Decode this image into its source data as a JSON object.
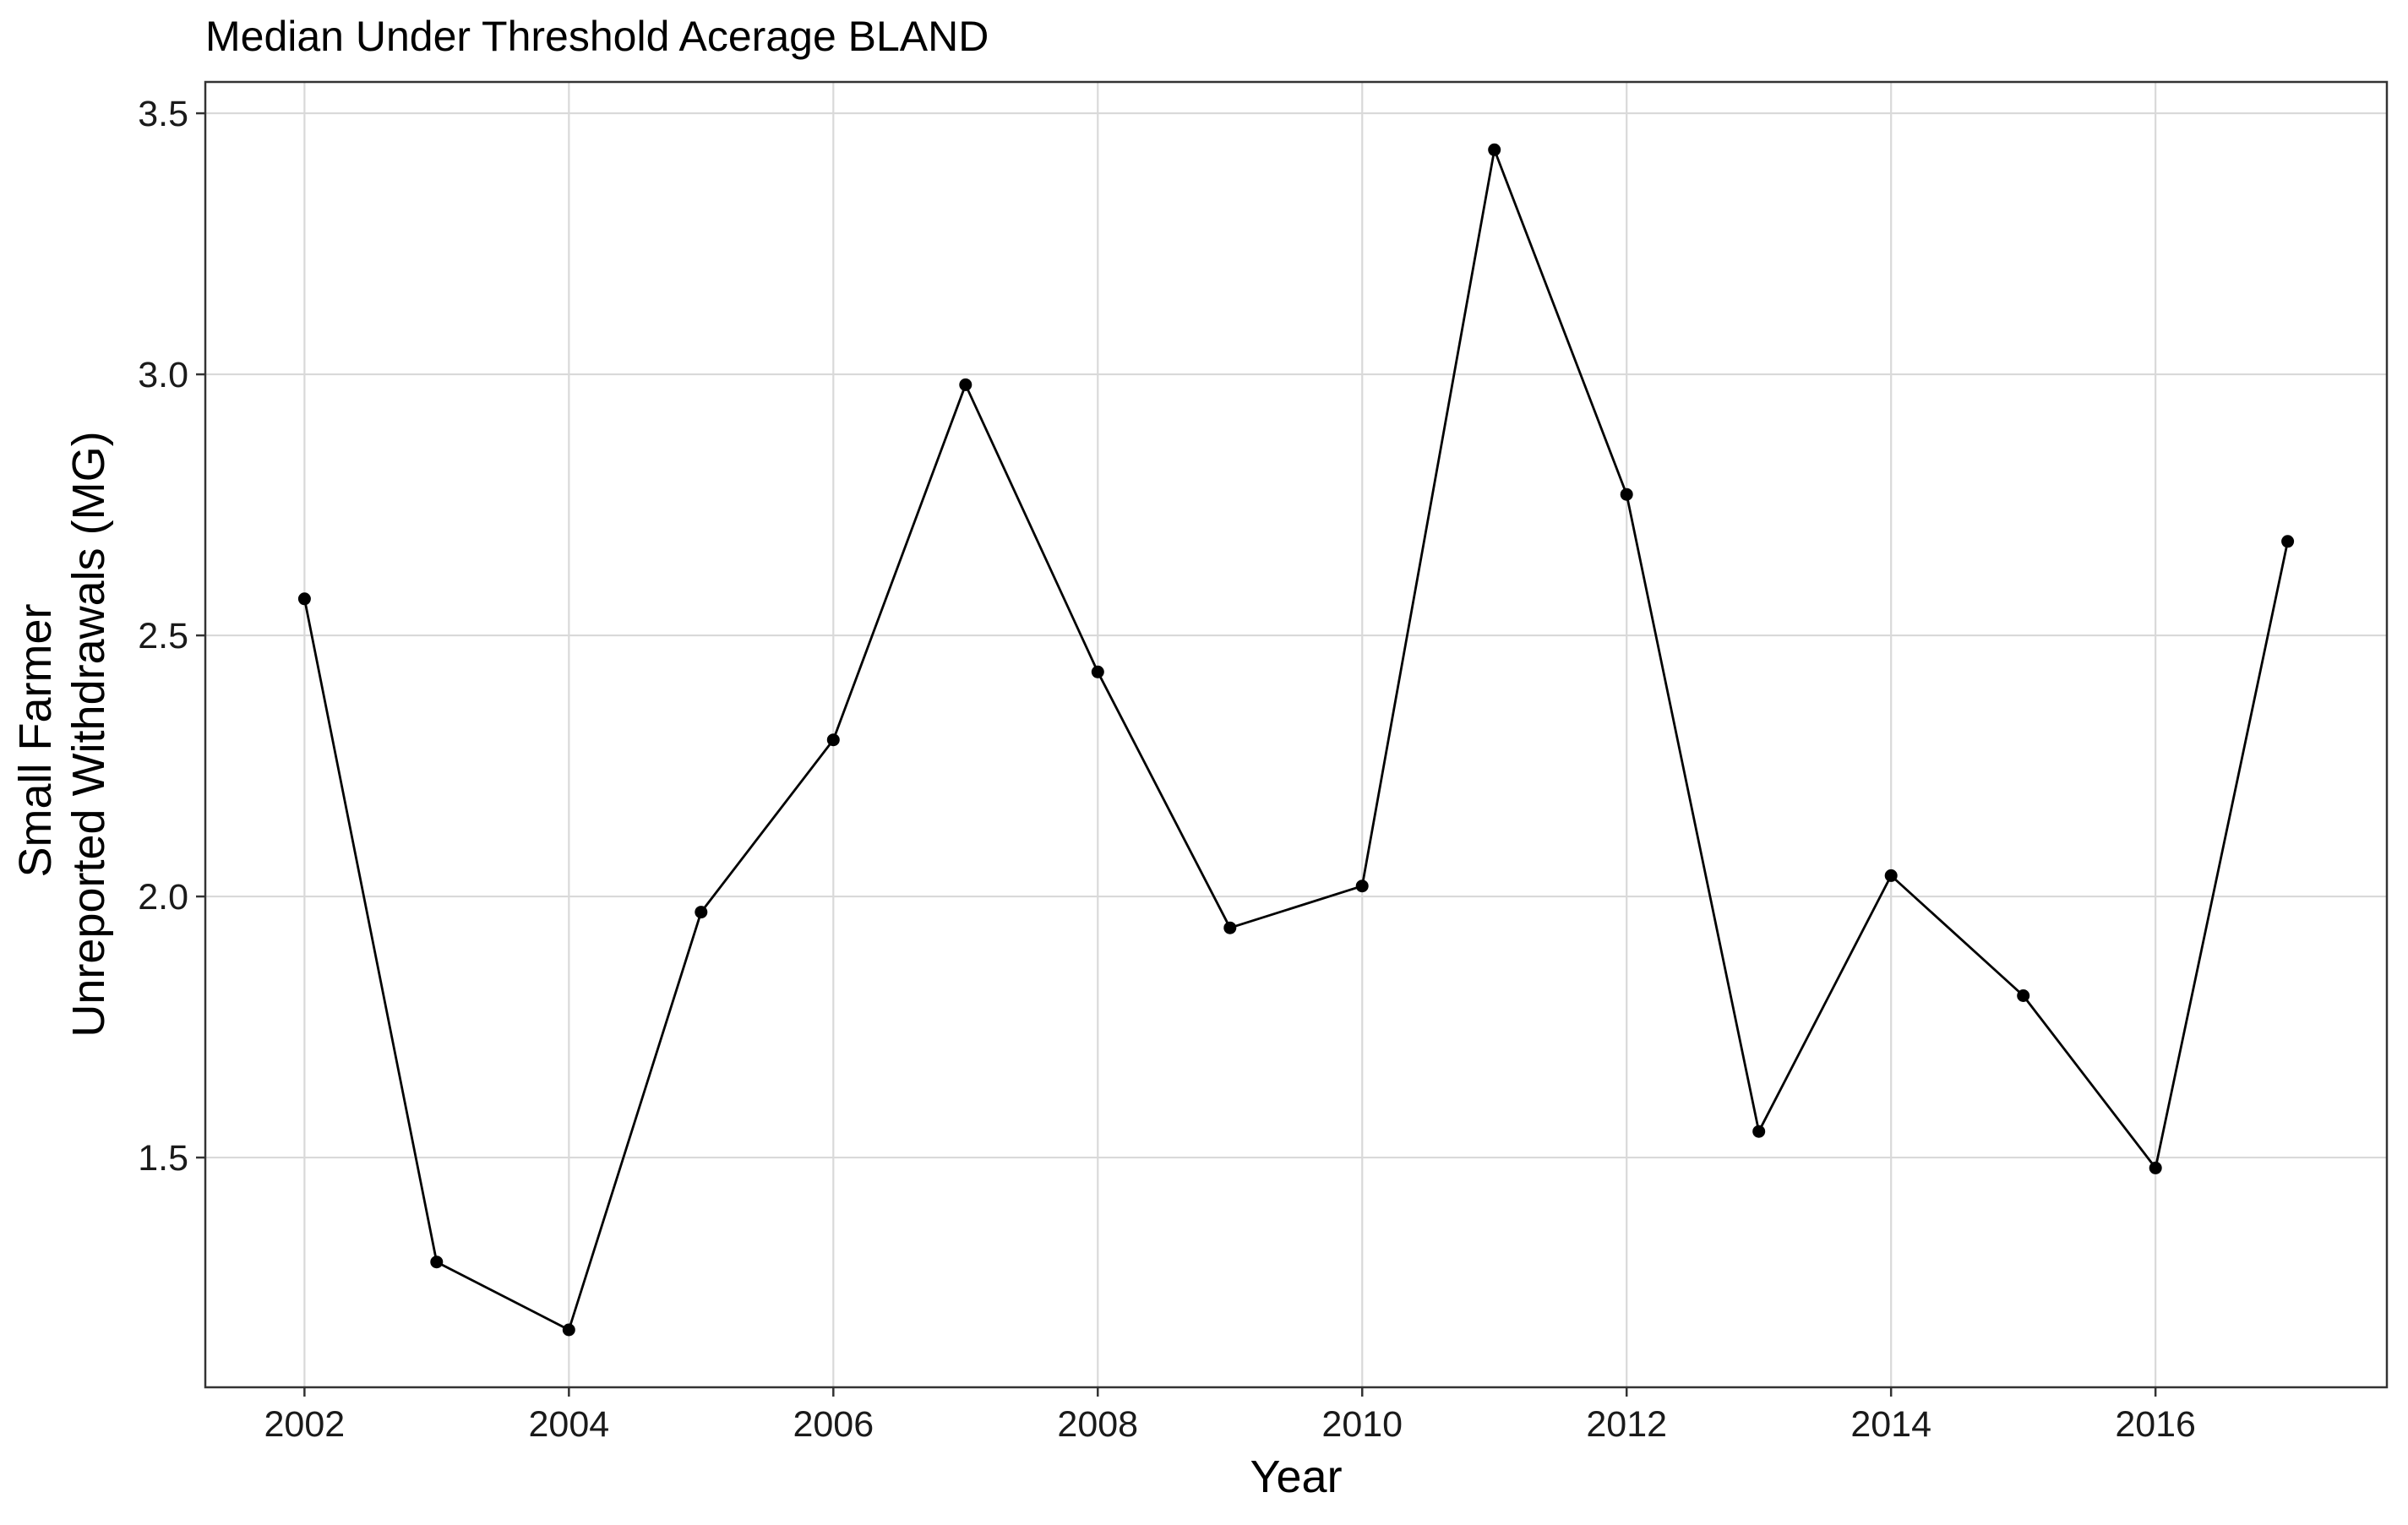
{
  "chart_data": {
    "type": "line",
    "title": "Median Under Threshold Acerage BLAND",
    "xlabel": "Year",
    "ylabel_lines": [
      "Small Farmer",
      "Unreported Withdrawals (MG)"
    ],
    "x": [
      2002,
      2003,
      2004,
      2005,
      2006,
      2007,
      2008,
      2009,
      2010,
      2011,
      2012,
      2013,
      2014,
      2015,
      2016,
      2017
    ],
    "values": [
      2.57,
      1.3,
      1.17,
      1.97,
      2.3,
      2.98,
      2.43,
      1.94,
      2.02,
      3.43,
      2.77,
      1.55,
      2.04,
      1.81,
      1.48,
      2.68
    ],
    "xlim": [
      2001.25,
      2017.75
    ],
    "ylim": [
      1.06,
      3.56
    ],
    "x_ticks": [
      2002,
      2004,
      2006,
      2008,
      2010,
      2012,
      2014,
      2016
    ],
    "y_ticks": [
      1.5,
      2.0,
      2.5,
      3.0,
      3.5
    ],
    "y_tick_labels": [
      "1.5",
      "2.0",
      "2.5",
      "3.0",
      "3.5"
    ],
    "grid": true,
    "legend": "none",
    "colors": {
      "line": "#000000",
      "point": "#000000",
      "grid": "#d9d9d9",
      "panel_border": "#333333",
      "background": "#ffffff"
    }
  }
}
